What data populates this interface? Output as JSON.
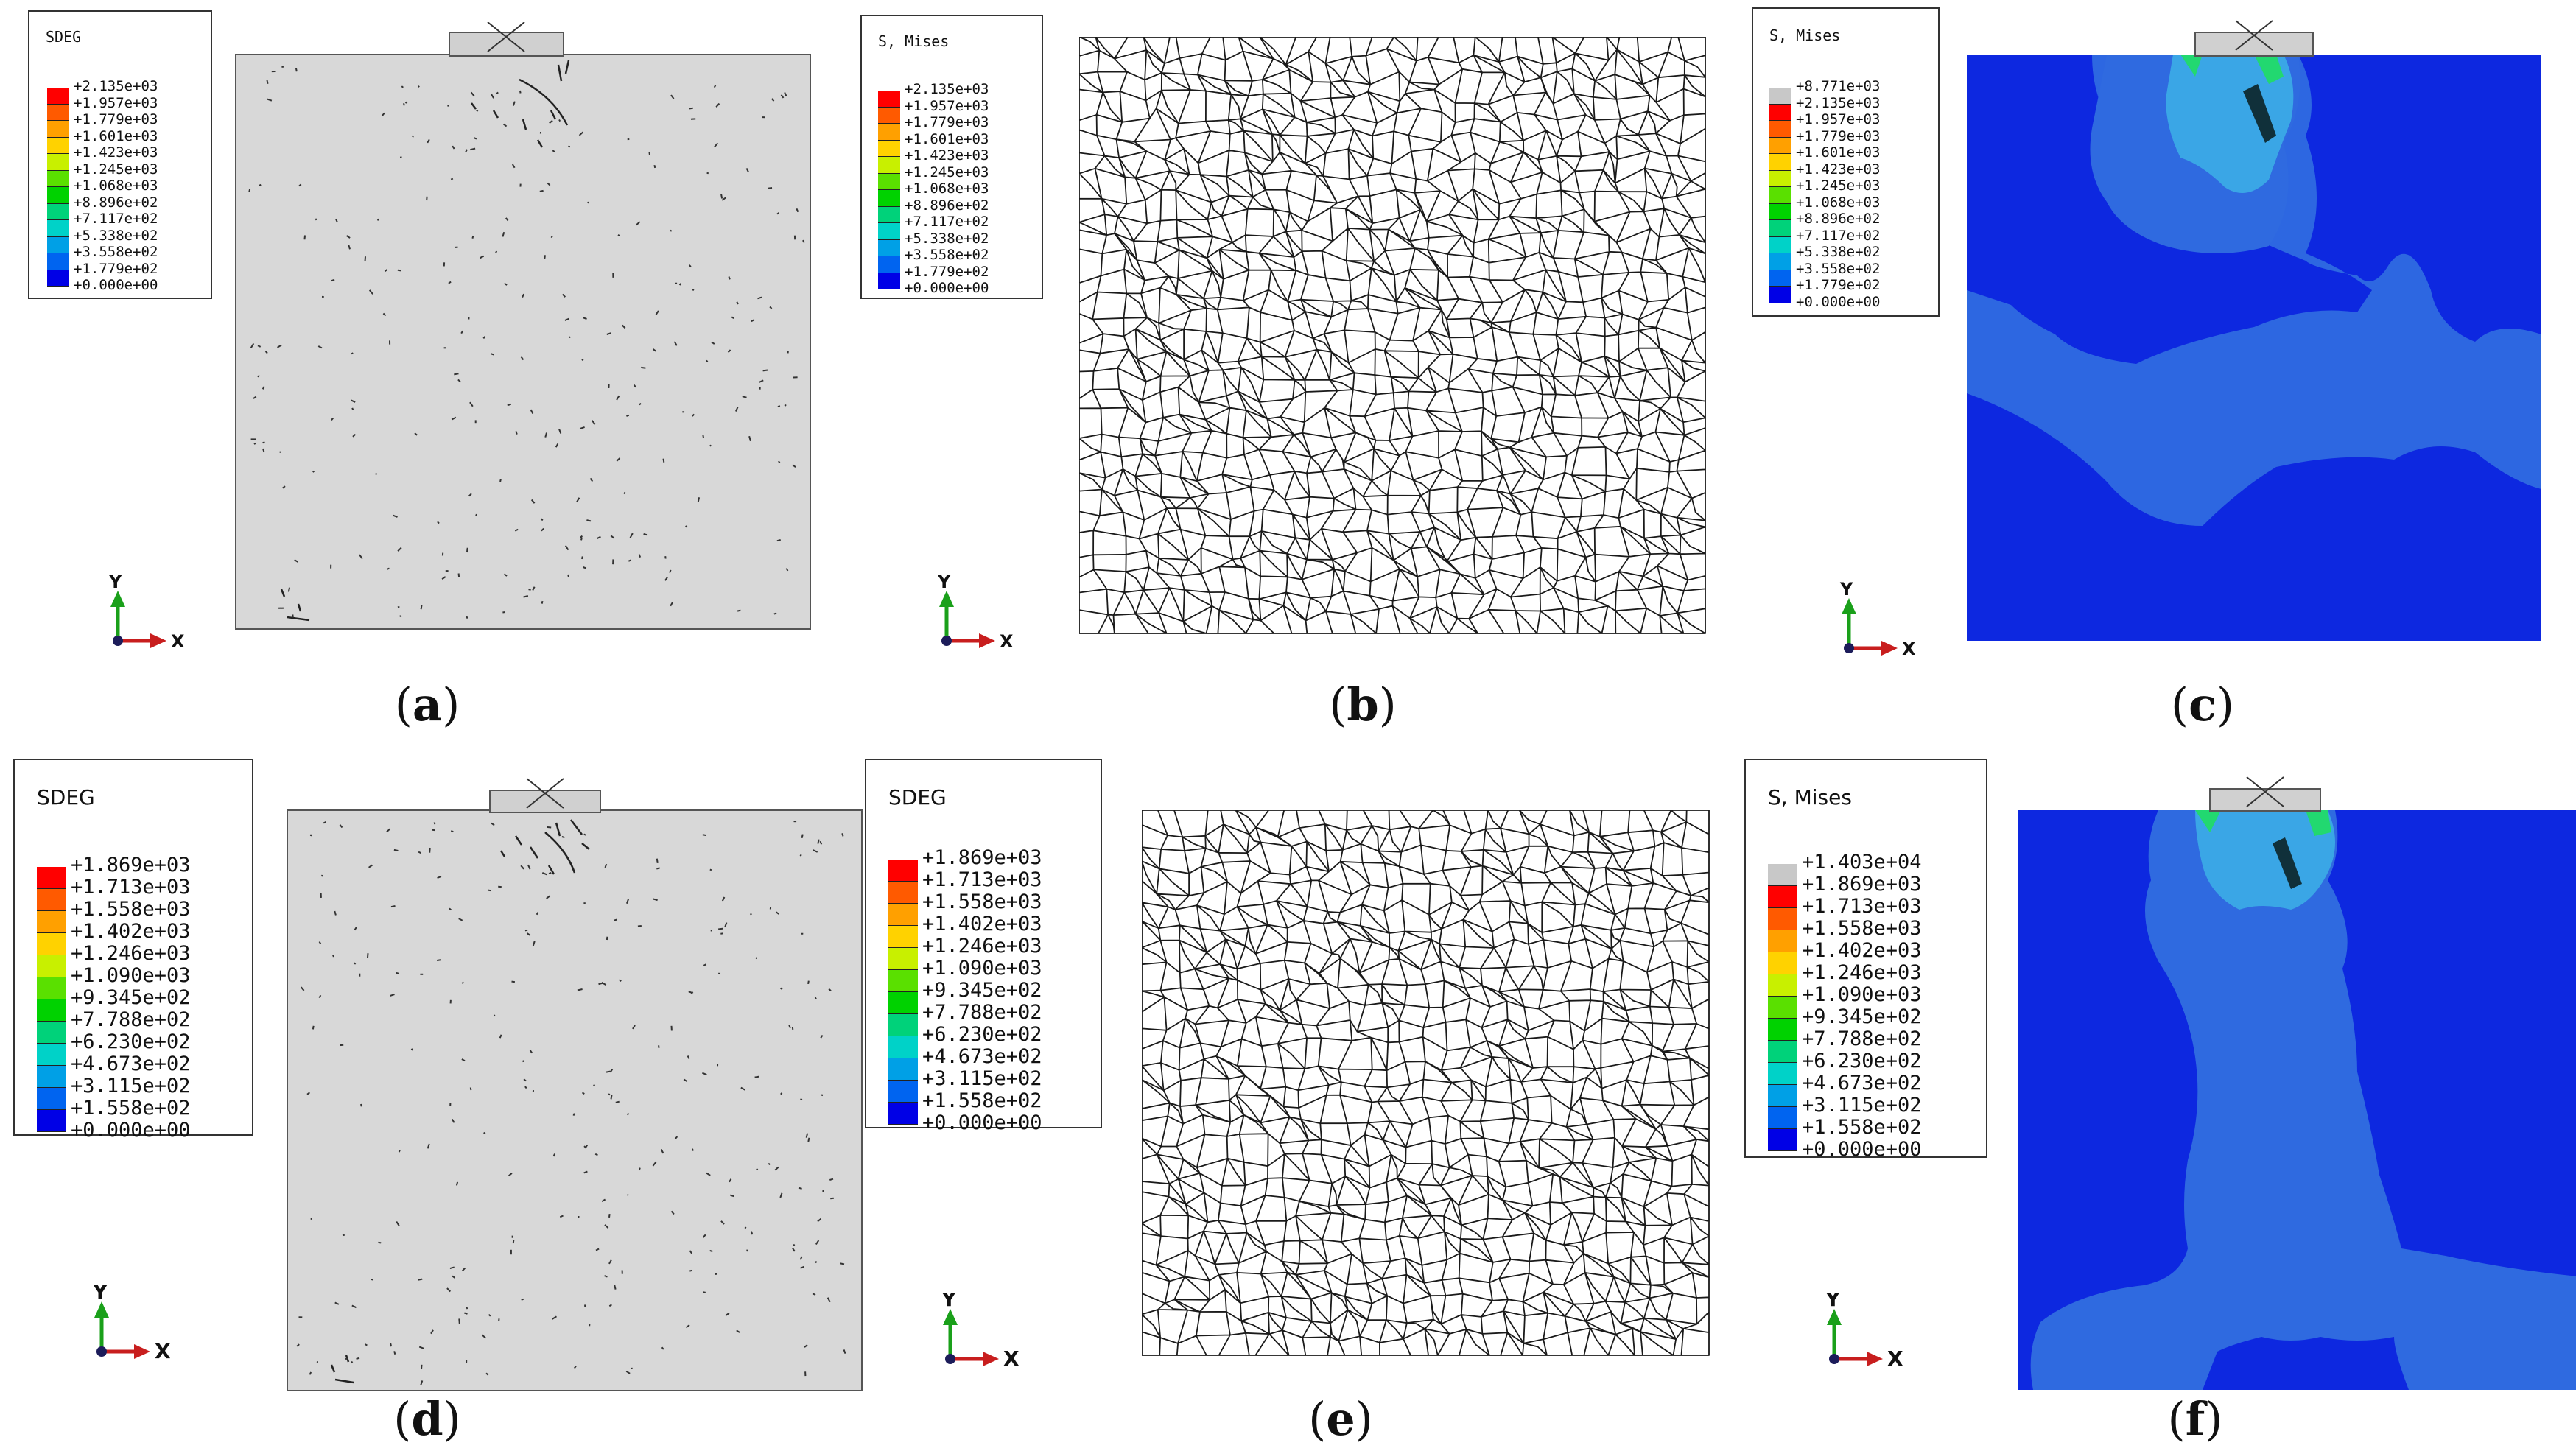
{
  "panels": [
    {
      "id": "a",
      "caption": "a",
      "legend_title": "SDEG",
      "legend_values": [
        "+2.135e+03",
        "+1.957e+03",
        "+1.779e+03",
        "+1.601e+03",
        "+1.423e+03",
        "+1.245e+03",
        "+1.068e+03",
        "+8.896e+02",
        "+7.117e+02",
        "+5.338e+02",
        "+3.558e+02",
        "+1.779e+02",
        "+0.000e+00"
      ]
    },
    {
      "id": "b",
      "caption": "b",
      "legend_title": "S, Mises",
      "legend_values": [
        "+2.135e+03",
        "+1.957e+03",
        "+1.779e+03",
        "+1.601e+03",
        "+1.423e+03",
        "+1.245e+03",
        "+1.068e+03",
        "+8.896e+02",
        "+7.117e+02",
        "+5.338e+02",
        "+3.558e+02",
        "+1.779e+02",
        "+0.000e+00"
      ]
    },
    {
      "id": "c",
      "caption": "c",
      "legend_title": "S, Mises",
      "legend_values": [
        "+8.771e+03",
        "+2.135e+03",
        "+1.957e+03",
        "+1.779e+03",
        "+1.601e+03",
        "+1.423e+03",
        "+1.245e+03",
        "+1.068e+03",
        "+8.896e+02",
        "+7.117e+02",
        "+5.338e+02",
        "+3.558e+02",
        "+1.779e+02",
        "+0.000e+00"
      ]
    },
    {
      "id": "d",
      "caption": "d",
      "legend_title": "SDEG",
      "legend_values": [
        "+1.869e+03",
        "+1.713e+03",
        "+1.558e+03",
        "+1.402e+03",
        "+1.246e+03",
        "+1.090e+03",
        "+9.345e+02",
        "+7.788e+02",
        "+6.230e+02",
        "+4.673e+02",
        "+3.115e+02",
        "+1.558e+02",
        "+0.000e+00"
      ]
    },
    {
      "id": "e",
      "caption": "e",
      "legend_title": "SDEG",
      "legend_values": [
        "+1.869e+03",
        "+1.713e+03",
        "+1.558e+03",
        "+1.402e+03",
        "+1.246e+03",
        "+1.090e+03",
        "+9.345e+02",
        "+7.788e+02",
        "+6.230e+02",
        "+4.673e+02",
        "+3.115e+02",
        "+1.558e+02",
        "+0.000e+00"
      ]
    },
    {
      "id": "f",
      "caption": "f",
      "legend_title": "S, Mises",
      "legend_values": [
        "+1.403e+04",
        "+1.869e+03",
        "+1.713e+03",
        "+1.558e+03",
        "+1.402e+03",
        "+1.246e+03",
        "+1.090e+03",
        "+9.345e+02",
        "+7.788e+02",
        "+6.230e+02",
        "+4.673e+02",
        "+3.115e+02",
        "+1.558e+02",
        "+0.000e+00"
      ]
    }
  ],
  "axis": {
    "y_label": "Y",
    "x_label": "X"
  },
  "colors": {
    "contour_12": [
      "#ff0000",
      "#ff5a00",
      "#ffa000",
      "#ffd200",
      "#c8f000",
      "#5ae000",
      "#00d200",
      "#00d27a",
      "#00d2c8",
      "#00a0e6",
      "#0064f0",
      "#0000e6"
    ],
    "overflow_grey": "#c8c8c8",
    "specimen_grey": "#d8d8d8",
    "deep_blue": "#0d28e0",
    "mid_blue": "#2f6ae0"
  }
}
